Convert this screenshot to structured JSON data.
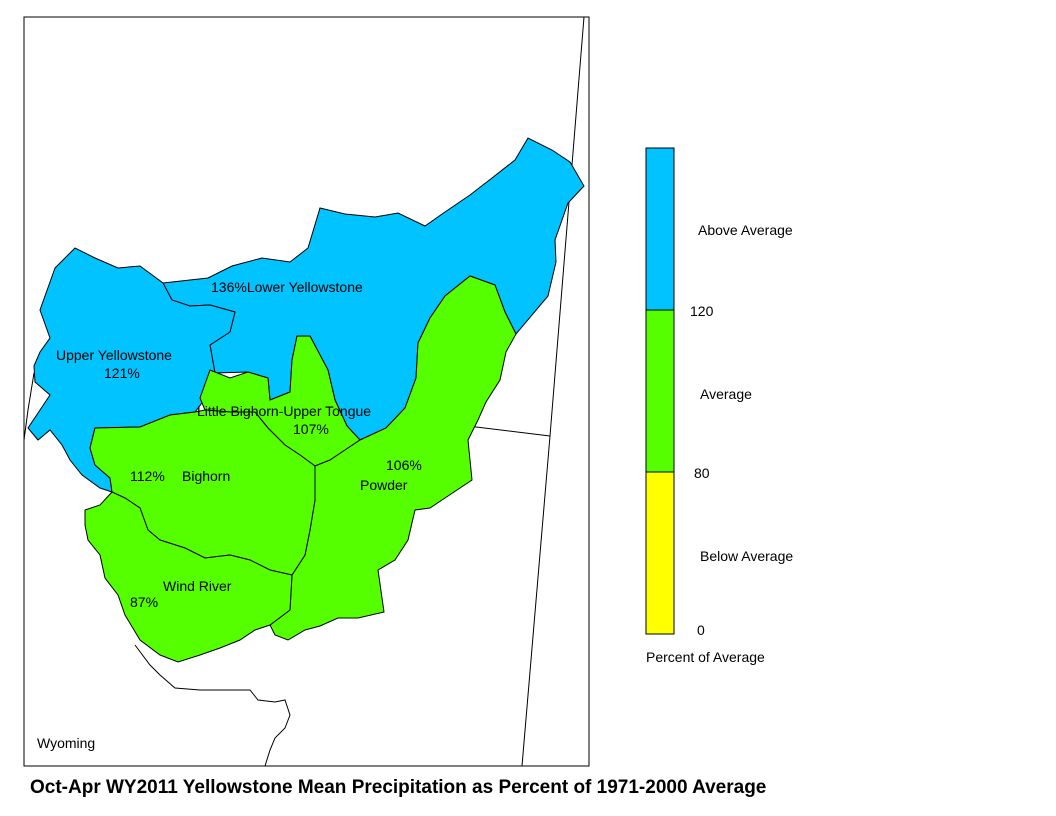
{
  "title": "Oct-Apr WY2011 Yellowstone Mean Precipitation as Percent of 1971-2000 Average",
  "state_label": "Wyoming",
  "colors": {
    "above": "#00c3ff",
    "average": "#55ff00",
    "below": "#ffff00",
    "outline": "#000000"
  },
  "basins": [
    {
      "name": "Lower Yellowstone",
      "percent": "136%",
      "category": "above"
    },
    {
      "name": "Upper Yellowstone",
      "percent": "121%",
      "category": "above"
    },
    {
      "name": "Little Bighorn-Upper Tongue",
      "percent": "107%",
      "category": "average"
    },
    {
      "name": "Bighorn",
      "percent": "112%",
      "category": "average"
    },
    {
      "name": "Powder",
      "percent": "106%",
      "category": "average"
    },
    {
      "name": "Wind River",
      "percent": "87%",
      "category": "average"
    }
  ],
  "legend": {
    "title": "Percent of Average",
    "classes": [
      {
        "label": "Above Average",
        "color": "#00c3ff"
      },
      {
        "label": "Average",
        "color": "#55ff00"
      },
      {
        "label": "Below Average",
        "color": "#ffff00"
      }
    ],
    "breaks": [
      "120",
      "80",
      "0"
    ]
  }
}
